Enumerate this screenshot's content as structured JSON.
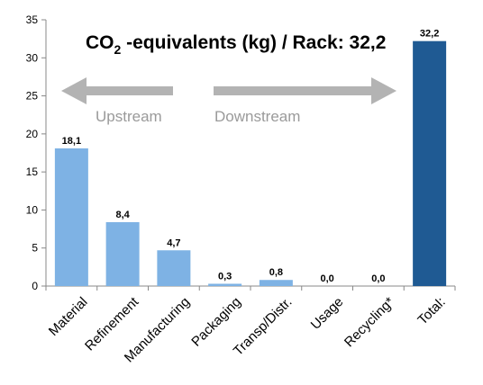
{
  "chart_data": {
    "type": "bar",
    "title_prefix": "CO",
    "title_subscript": "2",
    "title_suffix": " -equivalents (kg) / Rack: 32,2",
    "categories": [
      "Material",
      "Refinement",
      "Manufacturing",
      "Packaging",
      "Transp/Distr.",
      "Usage",
      "Recycling*",
      "Total:"
    ],
    "values": [
      18.1,
      8.4,
      4.7,
      0.3,
      0.8,
      0.0,
      0.0,
      32.2
    ],
    "value_labels": [
      "18,1",
      "8,4",
      "4,7",
      "0,3",
      "0,8",
      "0,0",
      "0,0",
      "32,2"
    ],
    "bar_colors": [
      "#7eb2e4",
      "#7eb2e4",
      "#7eb2e4",
      "#7eb2e4",
      "#7eb2e4",
      "#7eb2e4",
      "#7eb2e4",
      "#1f5a93"
    ],
    "ylim": [
      0,
      35
    ],
    "yticks": [
      0,
      5,
      10,
      15,
      20,
      25,
      30,
      35
    ],
    "grid": false,
    "annotations": {
      "upstream_label": "Upstream",
      "downstream_label": "Downstream",
      "arrow_color": "#b3b3b3"
    }
  }
}
